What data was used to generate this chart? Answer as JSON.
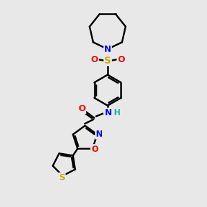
{
  "bg_color": "#e8e8e8",
  "atom_colors": {
    "C": "#000000",
    "N": "#0000ff",
    "O": "#ff0000",
    "S_yellow": "#ccaa00",
    "H": "#20b2aa"
  },
  "bond_color": "#000000",
  "bond_width": 1.8,
  "dbo": 0.07,
  "figsize": [
    3.0,
    3.0
  ],
  "dpi": 100,
  "xlim": [
    0,
    10
  ],
  "ylim": [
    0,
    10
  ]
}
